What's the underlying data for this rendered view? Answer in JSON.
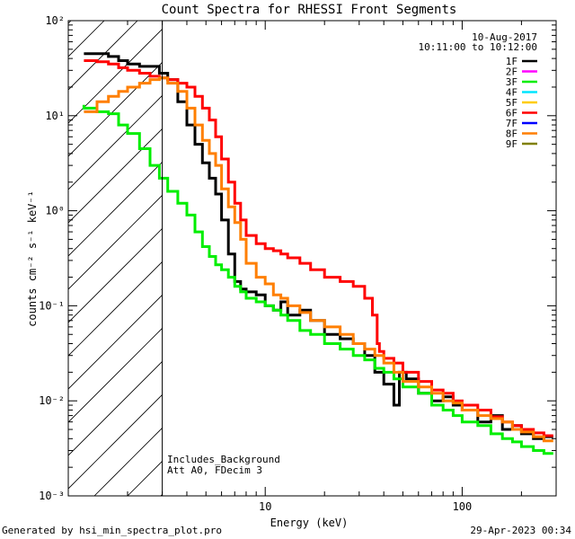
{
  "chart_data": {
    "type": "line",
    "title": "Count Spectra for RHESSI Front Segments",
    "xlabel": "Energy (keV)",
    "ylabel": "counts cm⁻² s⁻¹ keV⁻¹",
    "xscale": "log",
    "yscale": "log",
    "xlim": [
      1,
      300
    ],
    "ylim": [
      0.001,
      100
    ],
    "x_ticks": [
      {
        "v": 10,
        "label": "10"
      },
      {
        "v": 100,
        "label": "100"
      }
    ],
    "y_ticks": [
      {
        "v": 100,
        "label": "10²"
      },
      {
        "v": 10,
        "label": "10¹"
      },
      {
        "v": 1,
        "label": "10⁰"
      },
      {
        "v": 0.1,
        "label": "10⁻¹"
      },
      {
        "v": 0.01,
        "label": "10⁻²"
      },
      {
        "v": 0.001,
        "label": "10⁻³"
      }
    ],
    "shaded_region_below_keV": 3,
    "date": "10-Aug-2017",
    "time_range": "10:11:00 to 10:12:00",
    "annotations": [
      "Includes_Background",
      "Att A0, FDecim 3"
    ],
    "legend": [
      {
        "name": "1F",
        "color": "#000000"
      },
      {
        "name": "2F",
        "color": "#ff00ff"
      },
      {
        "name": "3F",
        "color": "#00ee00"
      },
      {
        "name": "4F",
        "color": "#00e5ff"
      },
      {
        "name": "5F",
        "color": "#ffcc00"
      },
      {
        "name": "6F",
        "color": "#ff0000"
      },
      {
        "name": "7F",
        "color": "#0000ff"
      },
      {
        "name": "8F",
        "color": "#ff7f00"
      },
      {
        "name": "9F",
        "color": "#808000"
      }
    ],
    "series": [
      {
        "name": "1F",
        "color": "#000000",
        "points": [
          [
            1.2,
            45
          ],
          [
            1.4,
            45
          ],
          [
            1.6,
            45
          ],
          [
            1.8,
            42
          ],
          [
            2.0,
            38
          ],
          [
            2.3,
            35
          ],
          [
            2.6,
            33
          ],
          [
            2.9,
            33
          ],
          [
            3.2,
            28
          ],
          [
            3.6,
            24
          ],
          [
            4.0,
            14
          ],
          [
            4.4,
            8
          ],
          [
            4.8,
            5
          ],
          [
            5.2,
            3.2
          ],
          [
            5.6,
            2.2
          ],
          [
            6.0,
            1.5
          ],
          [
            6.5,
            0.8
          ],
          [
            7.0,
            0.35
          ],
          [
            7.5,
            0.18
          ],
          [
            8.0,
            0.15
          ],
          [
            9,
            0.14
          ],
          [
            10,
            0.13
          ],
          [
            11,
            0.1
          ],
          [
            12,
            0.09
          ],
          [
            13,
            0.11
          ],
          [
            15,
            0.08
          ],
          [
            17,
            0.09
          ],
          [
            20,
            0.07
          ],
          [
            24,
            0.05
          ],
          [
            28,
            0.045
          ],
          [
            32,
            0.04
          ],
          [
            36,
            0.03
          ],
          [
            40,
            0.02
          ],
          [
            45,
            0.015
          ],
          [
            48,
            0.009
          ],
          [
            52,
            0.02
          ],
          [
            60,
            0.017
          ],
          [
            70,
            0.012
          ],
          [
            80,
            0.01
          ],
          [
            90,
            0.011
          ],
          [
            100,
            0.009
          ],
          [
            120,
            0.008
          ],
          [
            140,
            0.006
          ],
          [
            160,
            0.007
          ],
          [
            180,
            0.005
          ],
          [
            200,
            0.0055
          ],
          [
            230,
            0.0045
          ],
          [
            260,
            0.004
          ],
          [
            290,
            0.0042
          ]
        ]
      },
      {
        "name": "3F",
        "color": "#00ee00",
        "points": [
          [
            1.2,
            13
          ],
          [
            1.4,
            12
          ],
          [
            1.6,
            11
          ],
          [
            1.8,
            10.5
          ],
          [
            2.0,
            8
          ],
          [
            2.3,
            6.5
          ],
          [
            2.6,
            4.5
          ],
          [
            2.9,
            3
          ],
          [
            3.2,
            2.2
          ],
          [
            3.6,
            1.6
          ],
          [
            4.0,
            1.2
          ],
          [
            4.4,
            0.9
          ],
          [
            4.8,
            0.6
          ],
          [
            5.2,
            0.42
          ],
          [
            5.6,
            0.33
          ],
          [
            6.0,
            0.27
          ],
          [
            6.5,
            0.24
          ],
          [
            7.0,
            0.2
          ],
          [
            7.5,
            0.16
          ],
          [
            8.0,
            0.14
          ],
          [
            9,
            0.12
          ],
          [
            10,
            0.11
          ],
          [
            11,
            0.1
          ],
          [
            12,
            0.09
          ],
          [
            13,
            0.08
          ],
          [
            15,
            0.07
          ],
          [
            17,
            0.055
          ],
          [
            20,
            0.05
          ],
          [
            24,
            0.04
          ],
          [
            28,
            0.035
          ],
          [
            32,
            0.03
          ],
          [
            36,
            0.027
          ],
          [
            40,
            0.022
          ],
          [
            45,
            0.02
          ],
          [
            50,
            0.017
          ],
          [
            60,
            0.014
          ],
          [
            70,
            0.012
          ],
          [
            80,
            0.009
          ],
          [
            90,
            0.008
          ],
          [
            100,
            0.007
          ],
          [
            120,
            0.006
          ],
          [
            140,
            0.0055
          ],
          [
            160,
            0.0045
          ],
          [
            180,
            0.004
          ],
          [
            200,
            0.0037
          ],
          [
            230,
            0.0033
          ],
          [
            260,
            0.003
          ],
          [
            290,
            0.0028
          ]
        ]
      },
      {
        "name": "6F",
        "color": "#ff0000",
        "points": [
          [
            1.2,
            38
          ],
          [
            1.4,
            38
          ],
          [
            1.6,
            37
          ],
          [
            1.8,
            35
          ],
          [
            2.0,
            32
          ],
          [
            2.3,
            30
          ],
          [
            2.6,
            28
          ],
          [
            2.9,
            26
          ],
          [
            3.2,
            25
          ],
          [
            3.6,
            24
          ],
          [
            4.0,
            22
          ],
          [
            4.4,
            20
          ],
          [
            4.8,
            16
          ],
          [
            5.2,
            12
          ],
          [
            5.6,
            9
          ],
          [
            6.0,
            6
          ],
          [
            6.5,
            3.5
          ],
          [
            7.0,
            2
          ],
          [
            7.5,
            1.2
          ],
          [
            8.0,
            0.8
          ],
          [
            9,
            0.55
          ],
          [
            10,
            0.45
          ],
          [
            11,
            0.4
          ],
          [
            12,
            0.38
          ],
          [
            13,
            0.35
          ],
          [
            15,
            0.32
          ],
          [
            17,
            0.28
          ],
          [
            20,
            0.24
          ],
          [
            24,
            0.2
          ],
          [
            28,
            0.18
          ],
          [
            32,
            0.16
          ],
          [
            35,
            0.12
          ],
          [
            37,
            0.08
          ],
          [
            38,
            0.04
          ],
          [
            40,
            0.033
          ],
          [
            45,
            0.028
          ],
          [
            50,
            0.025
          ],
          [
            60,
            0.02
          ],
          [
            70,
            0.016
          ],
          [
            80,
            0.013
          ],
          [
            90,
            0.012
          ],
          [
            100,
            0.01
          ],
          [
            120,
            0.009
          ],
          [
            140,
            0.008
          ],
          [
            160,
            0.0068
          ],
          [
            180,
            0.006
          ],
          [
            200,
            0.0055
          ],
          [
            230,
            0.005
          ],
          [
            260,
            0.0046
          ],
          [
            290,
            0.0043
          ]
        ]
      },
      {
        "name": "8F",
        "color": "#ff7f00",
        "points": [
          [
            1.2,
            11
          ],
          [
            1.4,
            11
          ],
          [
            1.6,
            14
          ],
          [
            1.8,
            16
          ],
          [
            2.0,
            18
          ],
          [
            2.3,
            20
          ],
          [
            2.6,
            22
          ],
          [
            2.9,
            24
          ],
          [
            3.2,
            25
          ],
          [
            3.6,
            22
          ],
          [
            4.0,
            18
          ],
          [
            4.4,
            12
          ],
          [
            4.8,
            8
          ],
          [
            5.2,
            5.5
          ],
          [
            5.6,
            4
          ],
          [
            6.0,
            3
          ],
          [
            6.5,
            1.7
          ],
          [
            7.0,
            1.1
          ],
          [
            7.5,
            0.75
          ],
          [
            8.0,
            0.5
          ],
          [
            9,
            0.28
          ],
          [
            10,
            0.2
          ],
          [
            11,
            0.17
          ],
          [
            12,
            0.13
          ],
          [
            13,
            0.12
          ],
          [
            15,
            0.1
          ],
          [
            17,
            0.085
          ],
          [
            20,
            0.07
          ],
          [
            24,
            0.06
          ],
          [
            28,
            0.05
          ],
          [
            32,
            0.04
          ],
          [
            36,
            0.035
          ],
          [
            40,
            0.03
          ],
          [
            45,
            0.025
          ],
          [
            50,
            0.02
          ],
          [
            60,
            0.016
          ],
          [
            70,
            0.014
          ],
          [
            80,
            0.012
          ],
          [
            90,
            0.01
          ],
          [
            100,
            0.0095
          ],
          [
            120,
            0.008
          ],
          [
            140,
            0.007
          ],
          [
            160,
            0.0065
          ],
          [
            180,
            0.006
          ],
          [
            200,
            0.005
          ],
          [
            230,
            0.0047
          ],
          [
            260,
            0.0042
          ],
          [
            290,
            0.0038
          ]
        ]
      }
    ]
  }
}
